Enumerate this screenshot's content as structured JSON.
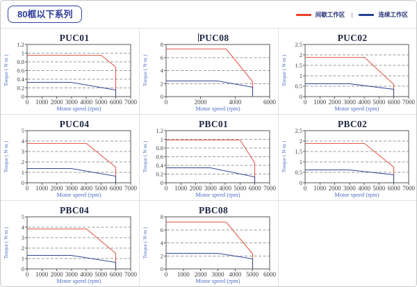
{
  "header": {
    "badge": "80框以下系列",
    "legend": [
      {
        "name": "间歇工作区",
        "color": "#e8402a"
      },
      {
        "name": "连续工作区",
        "color": "#23418f"
      }
    ],
    "legend_separator": "|"
  },
  "colors": {
    "red_line": "#e25a48",
    "blue_line": "#2c4490",
    "grid": "#999999",
    "tick_text": "#404040",
    "axis_label": "#4a6cc3",
    "plot_border": "#555555",
    "cell_border": "#e0e0e0",
    "title_text": "#1e2742"
  },
  "chart_data": [
    {
      "type": "line",
      "title": "PUC01",
      "cursor_before_title": false,
      "xlabel": "Motor speed (rpm)",
      "ylabel": "Torque ( N·m )",
      "xlim": [
        0,
        7000
      ],
      "xticks": [
        0,
        1000,
        2000,
        3000,
        4000,
        5000,
        6000,
        7000
      ],
      "ylim": [
        0,
        1.2
      ],
      "yticks": [
        0,
        0.2,
        0.4,
        0.6,
        0.8,
        1,
        1.2
      ],
      "series": [
        {
          "key": "intermittent",
          "name": "间歇工作区",
          "color": "#e25a48",
          "width": 1.1,
          "points": [
            [
              0,
              0.95
            ],
            [
              5000,
              0.95
            ],
            [
              6000,
              0.68
            ],
            [
              6000,
              0
            ]
          ]
        },
        {
          "key": "continuous",
          "name": "连续工作区",
          "color": "#2c4490",
          "width": 1,
          "points": [
            [
              0,
              0.33
            ],
            [
              3000,
              0.33
            ],
            [
              6000,
              0.15
            ],
            [
              6000,
              0
            ]
          ]
        }
      ]
    },
    {
      "type": "line",
      "title": "PUC08",
      "cursor_before_title": true,
      "xlabel": "Motor speed (rpm)",
      "ylabel": "Torque ( N·m )",
      "xlim": [
        0,
        6000
      ],
      "xticks": [
        0,
        2000,
        4000,
        6000
      ],
      "ylim": [
        0,
        8
      ],
      "yticks": [
        0,
        2,
        4,
        6,
        8
      ],
      "series": [
        {
          "key": "intermittent",
          "name": "间歇工作区",
          "color": "#e25a48",
          "width": 1.1,
          "points": [
            [
              0,
              7.3
            ],
            [
              3500,
              7.3
            ],
            [
              5000,
              2.3
            ],
            [
              5000,
              0
            ]
          ]
        },
        {
          "key": "continuous",
          "name": "连续工作区",
          "color": "#2c4490",
          "width": 1,
          "points": [
            [
              0,
              2.45
            ],
            [
              3000,
              2.45
            ],
            [
              5000,
              1.4
            ],
            [
              5000,
              0
            ]
          ]
        }
      ]
    },
    {
      "type": "line",
      "title": "PUC02",
      "cursor_before_title": false,
      "xlabel": "Motor speed (rpm)",
      "ylabel": "Torque ( N·m )",
      "xlim": [
        0,
        7000
      ],
      "xticks": [
        0,
        1000,
        2000,
        3000,
        4000,
        5000,
        6000,
        7000
      ],
      "ylim": [
        0,
        2.5
      ],
      "yticks": [
        0,
        0.5,
        1,
        1.5,
        2,
        2.5
      ],
      "series": [
        {
          "key": "intermittent",
          "name": "间歇工作区",
          "color": "#e25a48",
          "width": 1.1,
          "points": [
            [
              0,
              1.9
            ],
            [
              4000,
              1.9
            ],
            [
              6000,
              0.6
            ],
            [
              6000,
              0
            ]
          ]
        },
        {
          "key": "continuous",
          "name": "连续工作区",
          "color": "#2c4490",
          "width": 1,
          "points": [
            [
              0,
              0.62
            ],
            [
              3000,
              0.62
            ],
            [
              6000,
              0.35
            ],
            [
              6000,
              0
            ]
          ]
        }
      ]
    },
    {
      "type": "line",
      "title": "PUC04",
      "cursor_before_title": false,
      "xlabel": "Motor speed (rpm)",
      "ylabel": "Torque ( N·m )",
      "xlim": [
        0,
        7000
      ],
      "xticks": [
        0,
        1000,
        2000,
        3000,
        4000,
        5000,
        6000,
        7000
      ],
      "ylim": [
        0,
        5
      ],
      "yticks": [
        0,
        1,
        2,
        3,
        4,
        5
      ],
      "series": [
        {
          "key": "intermittent",
          "name": "间歇工作区",
          "color": "#e25a48",
          "width": 1.1,
          "points": [
            [
              0,
              3.8
            ],
            [
              4000,
              3.8
            ],
            [
              6000,
              1.5
            ],
            [
              6000,
              0
            ]
          ]
        },
        {
          "key": "continuous",
          "name": "连续工作区",
          "color": "#2c4490",
          "width": 1,
          "points": [
            [
              0,
              1.35
            ],
            [
              3000,
              1.35
            ],
            [
              6000,
              0.65
            ],
            [
              6000,
              0
            ]
          ]
        }
      ]
    },
    {
      "type": "line",
      "title": "PBC01",
      "cursor_before_title": false,
      "xlabel": "Motor speed (rpm)",
      "ylabel": "Torque ( N·m )",
      "xlim": [
        0,
        7000
      ],
      "xticks": [
        0,
        1000,
        2000,
        3000,
        4000,
        5000,
        6000,
        7000
      ],
      "ylim": [
        0,
        1.2
      ],
      "yticks": [
        0,
        0.2,
        0.4,
        0.6,
        0.8,
        1,
        1.2
      ],
      "series": [
        {
          "key": "intermittent",
          "name": "间歇工作区",
          "color": "#e25a48",
          "width": 1.1,
          "points": [
            [
              0,
              0.98
            ],
            [
              5000,
              0.98
            ],
            [
              6000,
              0.45
            ],
            [
              6000,
              0
            ]
          ]
        },
        {
          "key": "continuous",
          "name": "连续工作区",
          "color": "#2c4490",
          "width": 1,
          "points": [
            [
              0,
              0.35
            ],
            [
              3000,
              0.35
            ],
            [
              6000,
              0.13
            ],
            [
              6000,
              0
            ]
          ]
        }
      ]
    },
    {
      "type": "line",
      "title": "PBC02",
      "cursor_before_title": false,
      "xlabel": "Motor speed (rpm)",
      "ylabel": "Torque ( N·m )",
      "xlim": [
        0,
        7000
      ],
      "xticks": [
        0,
        1000,
        2000,
        3000,
        4000,
        5000,
        6000,
        7000
      ],
      "ylim": [
        0,
        2.5
      ],
      "yticks": [
        0,
        0.5,
        1,
        1.5,
        2,
        2.5
      ],
      "series": [
        {
          "key": "intermittent",
          "name": "间歇工作区",
          "color": "#e25a48",
          "width": 1.1,
          "points": [
            [
              0,
              1.88
            ],
            [
              4000,
              1.88
            ],
            [
              6000,
              0.75
            ],
            [
              6000,
              0
            ]
          ]
        },
        {
          "key": "continuous",
          "name": "连续工作区",
          "color": "#2c4490",
          "width": 1,
          "points": [
            [
              0,
              0.63
            ],
            [
              3000,
              0.63
            ],
            [
              6000,
              0.38
            ],
            [
              6000,
              0
            ]
          ]
        }
      ]
    },
    {
      "type": "line",
      "title": "PBC04",
      "cursor_before_title": false,
      "xlabel": "Motor speed (rpm)",
      "ylabel": "Torque ( N·m )",
      "xlim": [
        0,
        7000
      ],
      "xticks": [
        0,
        1000,
        2000,
        3000,
        4000,
        5000,
        6000,
        7000
      ],
      "ylim": [
        0,
        5
      ],
      "yticks": [
        0,
        1,
        2,
        3,
        4,
        5
      ],
      "series": [
        {
          "key": "intermittent",
          "name": "间歇工作区",
          "color": "#e25a48",
          "width": 1.1,
          "points": [
            [
              0,
              3.85
            ],
            [
              4000,
              3.85
            ],
            [
              6000,
              1.5
            ],
            [
              6000,
              0
            ]
          ]
        },
        {
          "key": "continuous",
          "name": "连续工作区",
          "color": "#2c4490",
          "width": 1,
          "points": [
            [
              0,
              1.3
            ],
            [
              3000,
              1.3
            ],
            [
              6000,
              0.65
            ],
            [
              6000,
              0
            ]
          ]
        }
      ]
    },
    {
      "type": "line",
      "title": "PBC08",
      "cursor_before_title": false,
      "xlabel": "Motor speed (rpm)",
      "ylabel": "Torque ( N·m )",
      "xlim": [
        0,
        6000
      ],
      "xticks": [
        0,
        1000,
        2000,
        3000,
        4000,
        5000,
        6000
      ],
      "ylim": [
        0,
        8
      ],
      "yticks": [
        0,
        2,
        4,
        6,
        8
      ],
      "series": [
        {
          "key": "intermittent",
          "name": "间歇工作区",
          "color": "#e25a48",
          "width": 1.1,
          "points": [
            [
              0,
              7.2
            ],
            [
              3500,
              7.2
            ],
            [
              5000,
              2.3
            ],
            [
              5000,
              0
            ]
          ]
        },
        {
          "key": "continuous",
          "name": "连续工作区",
          "color": "#2c4490",
          "width": 1,
          "points": [
            [
              0,
              2.4
            ],
            [
              3000,
              2.4
            ],
            [
              5000,
              1.5
            ],
            [
              5000,
              0
            ]
          ]
        }
      ]
    }
  ]
}
